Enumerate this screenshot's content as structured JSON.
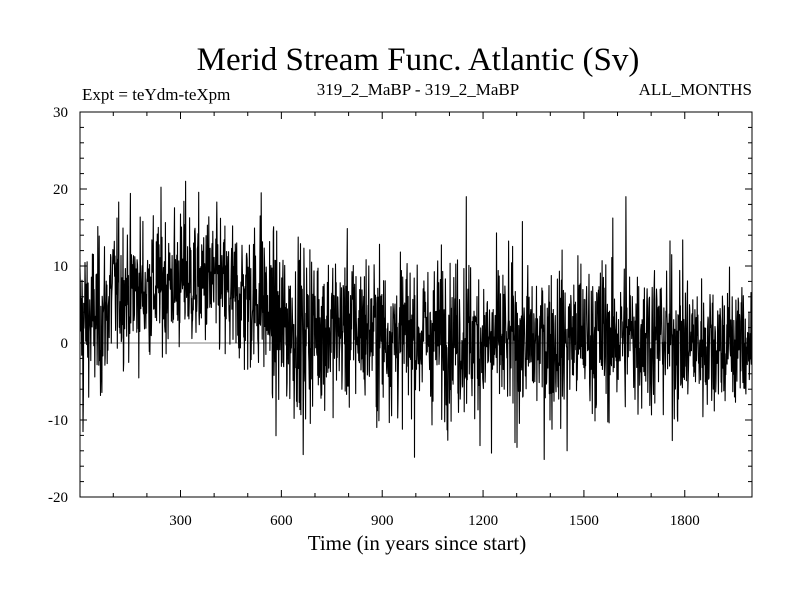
{
  "chart_data": {
    "type": "line",
    "title": "Merid Stream Func. Atlantic (Sv)",
    "subtitle_left": "Expt = teYdm-teXpm",
    "subtitle_center": "319_2_MaBP - 319_2_MaBP",
    "subtitle_right": "ALL_MONTHS",
    "xlabel": "Time (in years since start)",
    "ylabel": "",
    "xlim": [
      1,
      2000
    ],
    "ylim": [
      -20,
      30
    ],
    "xticks": [
      300,
      600,
      900,
      1200,
      1500,
      1800
    ],
    "xtick_labels": [
      "300",
      "600",
      "900",
      "1200",
      "1500",
      "1800"
    ],
    "yticks": [
      -20,
      -10,
      0,
      10,
      20,
      30
    ],
    "ytick_labels": [
      "-20",
      "-10",
      "0",
      "10",
      "20",
      "30"
    ],
    "zero_line": true,
    "grid": false,
    "series": [
      {
        "name": "Merid Stream Func. Atlantic",
        "description": "annual-mean time series, noisy (~2000 points); running mean by segment below, with approx. std dev",
        "segments": [
          {
            "x_start": 1,
            "x_end": 100,
            "mean": 3,
            "std": 5
          },
          {
            "x_start": 100,
            "x_end": 250,
            "mean": 7,
            "std": 4.5
          },
          {
            "x_start": 250,
            "x_end": 450,
            "mean": 8,
            "std": 4.5
          },
          {
            "x_start": 450,
            "x_end": 580,
            "mean": 6,
            "std": 5
          },
          {
            "x_start": 580,
            "x_end": 700,
            "mean": 2,
            "std": 5.5
          },
          {
            "x_start": 700,
            "x_end": 900,
            "mean": 2,
            "std": 5
          },
          {
            "x_start": 900,
            "x_end": 1200,
            "mean": 1,
            "std": 5
          },
          {
            "x_start": 1200,
            "x_end": 1500,
            "mean": 0,
            "std": 5
          },
          {
            "x_start": 1500,
            "x_end": 1800,
            "mean": 1,
            "std": 5
          },
          {
            "x_start": 1800,
            "x_end": 2000,
            "mean": 0,
            "std": 4.5
          }
        ],
        "peaks": [
          {
            "x": 315,
            "y": 21
          },
          {
            "x": 540,
            "y": 19.5
          },
          {
            "x": 1150,
            "y": 19
          },
          {
            "x": 1625,
            "y": 19
          },
          {
            "x": 665,
            "y": -14.5
          },
          {
            "x": 1225,
            "y": -14.3
          },
          {
            "x": 1450,
            "y": -14
          },
          {
            "x": 10,
            "y": -11.5
          }
        ]
      }
    ]
  }
}
